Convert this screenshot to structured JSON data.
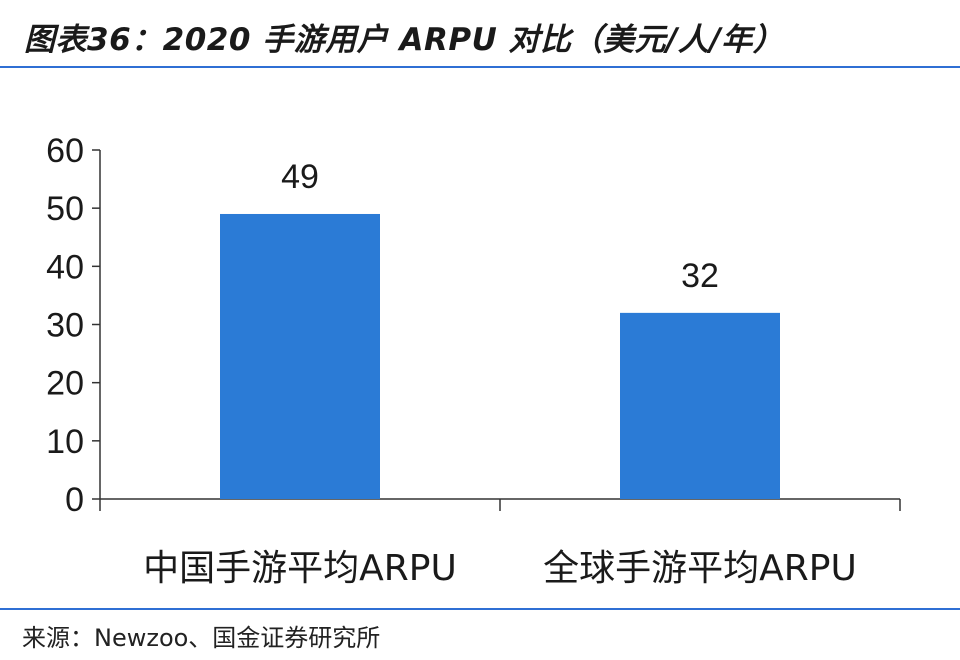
{
  "header": {
    "title": "图表36：2020 手游用户 ARPU 对比（美元/人/年）"
  },
  "footer": {
    "source": "来源：Newzoo、国金证券研究所"
  },
  "colors": {
    "bar": "#2b7bd6",
    "rule": "#2f6fd4",
    "axis": "#333333"
  },
  "chart_data": {
    "type": "bar",
    "categories": [
      "中国手游平均ARPU",
      "全球手游平均ARPU"
    ],
    "values": [
      49,
      32
    ],
    "data_labels": [
      "49",
      "32"
    ],
    "title": "图表36：2020 手游用户 ARPU 对比（美元/人/年）",
    "xlabel": "",
    "ylabel": "",
    "ylim": [
      0,
      60
    ],
    "yticks": [
      0,
      10,
      20,
      30,
      40,
      50,
      60
    ],
    "grid": false,
    "legend": "none"
  }
}
